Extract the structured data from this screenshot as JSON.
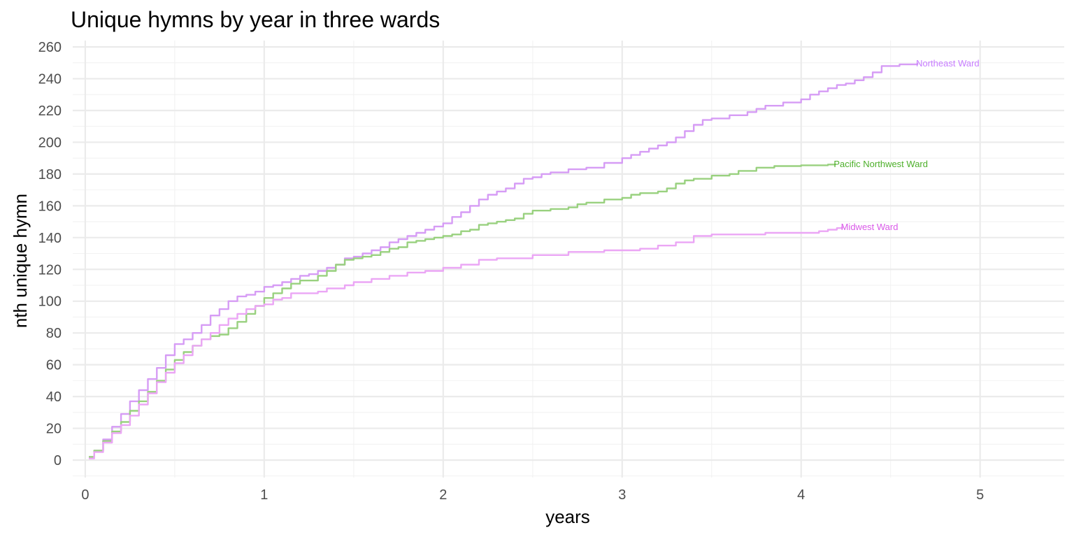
{
  "chart_data": {
    "type": "line",
    "title": "Unique hymns by year in three wards",
    "xlabel": "years",
    "ylabel": "nth unique hymn",
    "xlim": [
      -0.07,
      5.47
    ],
    "ylim": [
      -11,
      264
    ],
    "x_ticks": [
      0,
      1,
      2,
      3,
      4,
      5
    ],
    "y_ticks": [
      0,
      20,
      40,
      60,
      80,
      100,
      120,
      140,
      160,
      180,
      200,
      220,
      240,
      260
    ],
    "grid": true,
    "legend": "none",
    "series": [
      {
        "name": "Northeast Ward",
        "color": "#d69cf5",
        "label_color": "#c77cff",
        "points": [
          [
            0.02,
            2
          ],
          [
            0.05,
            6
          ],
          [
            0.1,
            13
          ],
          [
            0.15,
            21
          ],
          [
            0.2,
            29
          ],
          [
            0.25,
            37
          ],
          [
            0.3,
            44
          ],
          [
            0.35,
            51
          ],
          [
            0.4,
            58
          ],
          [
            0.45,
            66
          ],
          [
            0.5,
            73
          ],
          [
            0.55,
            76
          ],
          [
            0.6,
            80
          ],
          [
            0.65,
            85
          ],
          [
            0.7,
            91
          ],
          [
            0.75,
            95
          ],
          [
            0.8,
            100
          ],
          [
            0.85,
            103
          ],
          [
            0.9,
            104
          ],
          [
            0.95,
            106
          ],
          [
            1.0,
            109
          ],
          [
            1.05,
            110
          ],
          [
            1.1,
            112
          ],
          [
            1.15,
            114
          ],
          [
            1.2,
            116
          ],
          [
            1.25,
            117
          ],
          [
            1.3,
            119
          ],
          [
            1.35,
            121
          ],
          [
            1.4,
            123
          ],
          [
            1.45,
            127
          ],
          [
            1.5,
            128
          ],
          [
            1.55,
            130
          ],
          [
            1.6,
            132
          ],
          [
            1.65,
            134
          ],
          [
            1.7,
            137
          ],
          [
            1.75,
            139
          ],
          [
            1.8,
            141
          ],
          [
            1.85,
            143
          ],
          [
            1.9,
            145
          ],
          [
            1.95,
            147
          ],
          [
            2.0,
            149
          ],
          [
            2.05,
            153
          ],
          [
            2.1,
            156
          ],
          [
            2.15,
            160
          ],
          [
            2.2,
            164
          ],
          [
            2.25,
            167
          ],
          [
            2.3,
            169
          ],
          [
            2.35,
            171
          ],
          [
            2.4,
            174
          ],
          [
            2.45,
            177
          ],
          [
            2.5,
            178
          ],
          [
            2.55,
            180
          ],
          [
            2.6,
            181
          ],
          [
            2.7,
            183
          ],
          [
            2.8,
            184
          ],
          [
            2.9,
            187
          ],
          [
            3.0,
            190
          ],
          [
            3.05,
            192
          ],
          [
            3.1,
            194
          ],
          [
            3.15,
            196
          ],
          [
            3.2,
            198
          ],
          [
            3.25,
            200
          ],
          [
            3.3,
            203
          ],
          [
            3.35,
            207
          ],
          [
            3.4,
            211
          ],
          [
            3.45,
            214
          ],
          [
            3.5,
            215
          ],
          [
            3.6,
            217
          ],
          [
            3.7,
            219
          ],
          [
            3.75,
            221
          ],
          [
            3.8,
            223
          ],
          [
            3.9,
            225
          ],
          [
            4.0,
            227
          ],
          [
            4.05,
            230
          ],
          [
            4.1,
            232
          ],
          [
            4.15,
            234
          ],
          [
            4.2,
            236
          ],
          [
            4.25,
            237
          ],
          [
            4.3,
            239
          ],
          [
            4.35,
            241
          ],
          [
            4.4,
            244
          ],
          [
            4.45,
            248
          ],
          [
            4.55,
            249
          ],
          [
            4.65,
            250
          ]
        ],
        "label": "Northeast Ward"
      },
      {
        "name": "Pacific Northwest Ward",
        "color": "#99d17f",
        "label_color": "#4daf2a",
        "points": [
          [
            0.02,
            2
          ],
          [
            0.05,
            6
          ],
          [
            0.1,
            12
          ],
          [
            0.15,
            18
          ],
          [
            0.2,
            24
          ],
          [
            0.25,
            31
          ],
          [
            0.3,
            37
          ],
          [
            0.35,
            43
          ],
          [
            0.4,
            50
          ],
          [
            0.45,
            57
          ],
          [
            0.5,
            63
          ],
          [
            0.55,
            68
          ],
          [
            0.6,
            72
          ],
          [
            0.65,
            76
          ],
          [
            0.7,
            78
          ],
          [
            0.75,
            79
          ],
          [
            0.8,
            83
          ],
          [
            0.85,
            87
          ],
          [
            0.9,
            92
          ],
          [
            0.95,
            97
          ],
          [
            1.0,
            102
          ],
          [
            1.05,
            105
          ],
          [
            1.1,
            108
          ],
          [
            1.15,
            111
          ],
          [
            1.2,
            113
          ],
          [
            1.3,
            116
          ],
          [
            1.35,
            119
          ],
          [
            1.4,
            123
          ],
          [
            1.45,
            126
          ],
          [
            1.5,
            127
          ],
          [
            1.55,
            128
          ],
          [
            1.6,
            129
          ],
          [
            1.65,
            131
          ],
          [
            1.7,
            133
          ],
          [
            1.75,
            134
          ],
          [
            1.8,
            137
          ],
          [
            1.85,
            138
          ],
          [
            1.9,
            139
          ],
          [
            1.95,
            140
          ],
          [
            2.0,
            141
          ],
          [
            2.05,
            142
          ],
          [
            2.1,
            144
          ],
          [
            2.15,
            145
          ],
          [
            2.2,
            148
          ],
          [
            2.25,
            149
          ],
          [
            2.3,
            150
          ],
          [
            2.35,
            151
          ],
          [
            2.4,
            152
          ],
          [
            2.45,
            155
          ],
          [
            2.5,
            157
          ],
          [
            2.6,
            158
          ],
          [
            2.7,
            159
          ],
          [
            2.75,
            161
          ],
          [
            2.8,
            162
          ],
          [
            2.9,
            164
          ],
          [
            3.0,
            165
          ],
          [
            3.05,
            167
          ],
          [
            3.1,
            168
          ],
          [
            3.2,
            169
          ],
          [
            3.25,
            171
          ],
          [
            3.3,
            174
          ],
          [
            3.35,
            176
          ],
          [
            3.4,
            177
          ],
          [
            3.5,
            179
          ],
          [
            3.6,
            180
          ],
          [
            3.65,
            182
          ],
          [
            3.75,
            184
          ],
          [
            3.85,
            185
          ],
          [
            4.0,
            185.5
          ],
          [
            4.15,
            186
          ],
          [
            4.19,
            186.5
          ]
        ],
        "label": "Pacific Northwest Ward"
      },
      {
        "name": "Midwest Ward",
        "color": "#eba6f5",
        "label_color": "#d959e8",
        "points": [
          [
            0.02,
            1
          ],
          [
            0.05,
            5
          ],
          [
            0.1,
            11
          ],
          [
            0.15,
            17
          ],
          [
            0.2,
            22
          ],
          [
            0.25,
            28
          ],
          [
            0.3,
            35
          ],
          [
            0.35,
            42
          ],
          [
            0.4,
            49
          ],
          [
            0.45,
            55
          ],
          [
            0.5,
            61
          ],
          [
            0.55,
            66
          ],
          [
            0.6,
            72
          ],
          [
            0.65,
            76
          ],
          [
            0.7,
            80
          ],
          [
            0.75,
            85
          ],
          [
            0.8,
            89
          ],
          [
            0.85,
            92
          ],
          [
            0.9,
            95
          ],
          [
            0.95,
            97
          ],
          [
            1.0,
            98
          ],
          [
            1.05,
            101
          ],
          [
            1.1,
            102
          ],
          [
            1.15,
            105
          ],
          [
            1.3,
            106
          ],
          [
            1.35,
            108
          ],
          [
            1.45,
            110
          ],
          [
            1.5,
            112
          ],
          [
            1.6,
            114
          ],
          [
            1.7,
            116
          ],
          [
            1.8,
            118
          ],
          [
            1.9,
            119
          ],
          [
            2.0,
            121
          ],
          [
            2.1,
            123
          ],
          [
            2.2,
            126
          ],
          [
            2.3,
            127
          ],
          [
            2.5,
            129
          ],
          [
            2.7,
            131
          ],
          [
            2.9,
            132
          ],
          [
            3.1,
            133
          ],
          [
            3.2,
            135
          ],
          [
            3.3,
            137
          ],
          [
            3.4,
            141
          ],
          [
            3.5,
            142
          ],
          [
            3.8,
            143
          ],
          [
            4.1,
            144
          ],
          [
            4.15,
            145
          ],
          [
            4.2,
            146
          ],
          [
            4.23,
            147
          ]
        ],
        "label": "Midwest Ward"
      }
    ]
  }
}
